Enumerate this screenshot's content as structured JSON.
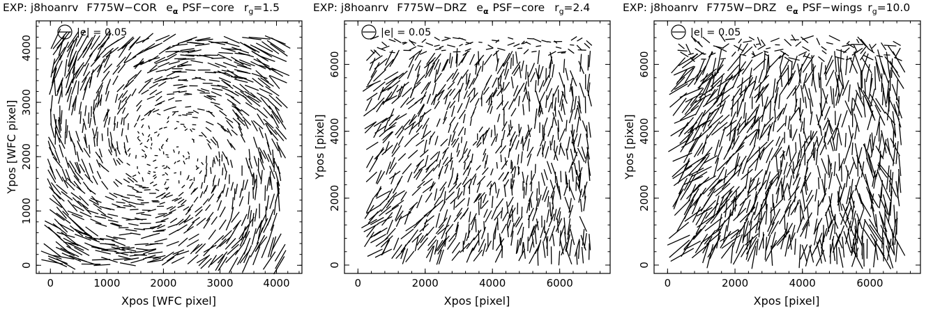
{
  "chart_data": [
    {
      "type": "scatter",
      "title": {
        "exp_prefix": "EXP: j8hoanrv",
        "filter": "F775W−COR",
        "e_symbol": "e",
        "e_subscript": "α",
        "psf_label": "PSF−core",
        "rg_symbol": "r",
        "rg_subscript": "g",
        "rg_value": "=1.5"
      },
      "xlabel": "Xpos [WFC pixel]",
      "ylabel": "Ypos [WFC pixel]",
      "xlim": [
        -250,
        4450
      ],
      "ylim": [
        -150,
        4500
      ],
      "xticks": [
        0,
        1000,
        2000,
        3000,
        4000
      ],
      "yticks": [
        0,
        1000,
        2000,
        3000,
        4000
      ],
      "xticklabels": [
        "0",
        "1000",
        "2000",
        "3000",
        "4000"
      ],
      "yticklabels": [
        "0",
        "1000",
        "2000",
        "3000",
        "4000"
      ],
      "legend": {
        "text": "|e| = 0.05",
        "position": "top-left"
      },
      "field": {
        "x_range": [
          0,
          4100
        ],
        "y_range": [
          0,
          4200
        ],
        "grid": 42,
        "style": "swirl"
      }
    },
    {
      "type": "scatter",
      "title": {
        "exp_prefix": "EXP: j8hoanrv",
        "filter": "F775W−DRZ",
        "e_symbol": "e",
        "e_subscript": "α",
        "psf_label": "PSF−core",
        "rg_symbol": "r",
        "rg_subscript": "g",
        "rg_value": "=2.4"
      },
      "xlabel": "Xpos [pixel]",
      "ylabel": "Ypos [pixel]",
      "xlim": [
        -400,
        7500
      ],
      "ylim": [
        -250,
        7300
      ],
      "xticks": [
        0,
        2000,
        4000,
        6000
      ],
      "yticks": [
        0,
        2000,
        4000,
        6000
      ],
      "xticklabels": [
        "0",
        "2000",
        "4000",
        "6000"
      ],
      "yticklabels": [
        "0",
        "2000",
        "4000",
        "6000"
      ],
      "legend": {
        "text": "|e| = 0.05",
        "position": "top-left"
      },
      "field": {
        "x_range": [
          300,
          6900
        ],
        "y_range": [
          200,
          6800
        ],
        "grid": 40,
        "style": "diagonal"
      }
    },
    {
      "type": "scatter",
      "title": {
        "exp_prefix": "EXP: j8hoanrv",
        "filter": "F775W−DRZ",
        "e_symbol": "e",
        "e_subscript": "α",
        "psf_label": "PSF−wings",
        "rg_symbol": "r",
        "rg_subscript": "g",
        "rg_value": "=10.0"
      },
      "xlabel": "Xpos [pixel]",
      "ylabel": "Ypos [pixel]",
      "xlim": [
        -400,
        7500
      ],
      "ylim": [
        -250,
        7300
      ],
      "xticks": [
        0,
        2000,
        4000,
        6000
      ],
      "yticks": [
        0,
        2000,
        4000,
        6000
      ],
      "xticklabels": [
        "0",
        "2000",
        "4000",
        "6000"
      ],
      "yticklabels": [
        "0",
        "2000",
        "4000",
        "6000"
      ],
      "legend": {
        "text": "|e| = 0.05",
        "position": "top-left"
      },
      "field": {
        "x_range": [
          300,
          6900
        ],
        "y_range": [
          200,
          6800
        ],
        "grid": 40,
        "style": "wings"
      }
    }
  ]
}
